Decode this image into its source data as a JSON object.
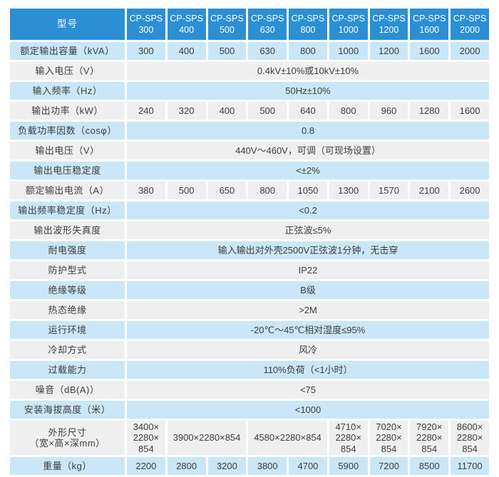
{
  "colors": {
    "header_bg": "#2b8fd4",
    "row_blue": "#c9e7f8",
    "row_gray": "#efefef",
    "text_dark": "#3d3d3d",
    "header_text": "#ffffff",
    "page_bg": "#ffffff"
  },
  "table": {
    "corner_label": "型号",
    "model_prefix": "CP-SPS",
    "model_sizes": [
      "300",
      "400",
      "500",
      "630",
      "800",
      "1000",
      "1200",
      "1600",
      "2000"
    ],
    "rows": [
      {
        "label": "额定输出容量（kVA）",
        "cells": [
          {
            "t": "300"
          },
          {
            "t": "400"
          },
          {
            "t": "500"
          },
          {
            "t": "630"
          },
          {
            "t": "800"
          },
          {
            "t": "1000"
          },
          {
            "t": "1200"
          },
          {
            "t": "1600"
          },
          {
            "t": "2000"
          }
        ]
      },
      {
        "label": "输入电压（V）",
        "cells": [
          {
            "t": "0.4kV±10%或10kV±10%",
            "span": 9
          }
        ]
      },
      {
        "label": "输入频率（Hz）",
        "cells": [
          {
            "t": "50Hz±10%",
            "span": 9
          }
        ]
      },
      {
        "label": "输出功率（kW）",
        "cells": [
          {
            "t": "240"
          },
          {
            "t": "320"
          },
          {
            "t": "400"
          },
          {
            "t": "500"
          },
          {
            "t": "640"
          },
          {
            "t": "800"
          },
          {
            "t": "960"
          },
          {
            "t": "1280"
          },
          {
            "t": "1600"
          }
        ]
      },
      {
        "label": "负载功率因数（cosφ）",
        "cells": [
          {
            "t": "0.8",
            "span": 9
          }
        ]
      },
      {
        "label": "输出电压（V）",
        "cells": [
          {
            "t": "440V～460V，可调（可现场设置）",
            "span": 9
          }
        ]
      },
      {
        "label": "输出电压稳定度",
        "cells": [
          {
            "t": "<±2%",
            "span": 9
          }
        ]
      },
      {
        "label": "额定输出电流（A）",
        "cells": [
          {
            "t": "380"
          },
          {
            "t": "500"
          },
          {
            "t": "650"
          },
          {
            "t": "800"
          },
          {
            "t": "1050"
          },
          {
            "t": "1300"
          },
          {
            "t": "1570"
          },
          {
            "t": "2100"
          },
          {
            "t": "2600"
          }
        ]
      },
      {
        "label": "输出频率稳定度（Hz）",
        "cells": [
          {
            "t": "<0.2",
            "span": 9
          }
        ]
      },
      {
        "label": "输出波形失真度",
        "cells": [
          {
            "t": "正弦波≤5%",
            "span": 9
          }
        ]
      },
      {
        "label": "耐电强度",
        "cells": [
          {
            "t": "输入输出对外壳2500V正弦波1分钟，无击穿",
            "span": 9
          }
        ]
      },
      {
        "label": "防护型式",
        "cells": [
          {
            "t": "IP22",
            "span": 9
          }
        ]
      },
      {
        "label": "绝缘等级",
        "cells": [
          {
            "t": "B级",
            "span": 9
          }
        ]
      },
      {
        "label": "热态绝缘",
        "cells": [
          {
            "t": ">2M",
            "span": 9
          }
        ]
      },
      {
        "label": "运行环境",
        "cells": [
          {
            "t": "-20℃～45℃相对湿度≤95%",
            "span": 9
          }
        ]
      },
      {
        "label": "冷却方式",
        "cells": [
          {
            "t": "风冷",
            "span": 9
          }
        ]
      },
      {
        "label": "过载能力",
        "cells": [
          {
            "t": "110%负荷（<1小时）",
            "span": 9
          }
        ]
      },
      {
        "label": "噪音（dB(A)）",
        "cells": [
          {
            "t": "<75",
            "span": 9
          }
        ]
      },
      {
        "label": "安装海拔高度（米）",
        "cells": [
          {
            "t": "<1000",
            "span": 9
          }
        ]
      },
      {
        "label": "外形尺寸\n（宽×高×深mm）",
        "cells": [
          {
            "t": "3400×\n2280×\n854"
          },
          {
            "t": "3900×2280×854",
            "span": 2
          },
          {
            "t": "4580×2280×854",
            "span": 2
          },
          {
            "t": "4710×\n2280×\n854"
          },
          {
            "t": "7020×\n2280×\n854"
          },
          {
            "t": "7920×\n2280×\n854"
          },
          {
            "t": "8600×\n2280×\n854"
          }
        ]
      },
      {
        "label": "重量（kg）",
        "cells": [
          {
            "t": "2200"
          },
          {
            "t": "2800"
          },
          {
            "t": "3200"
          },
          {
            "t": "3800"
          },
          {
            "t": "4700"
          },
          {
            "t": "5900"
          },
          {
            "t": "7200"
          },
          {
            "t": "8500"
          },
          {
            "t": "11700"
          }
        ]
      }
    ]
  }
}
